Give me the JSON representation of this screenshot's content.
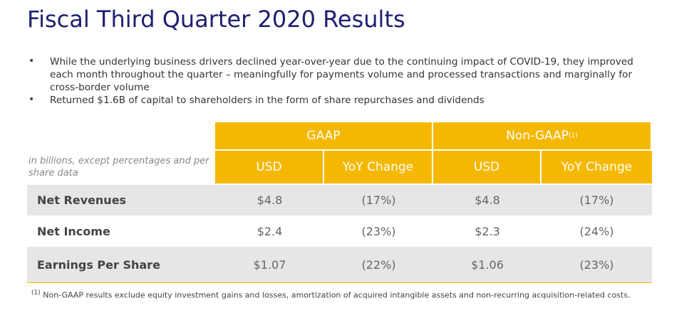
{
  "header": {
    "title": "Fiscal Third Quarter 2020 Results"
  },
  "bullets": [
    "While the underlying business drivers declined year-over-year due to the continuing impact of COVID-19, they improved each month throughout the quarter – meaningfully for payments volume and processed transactions and marginally for cross-border volume",
    "Returned $1.6B of capital to shareholders in the form of share repurchases and dividends"
  ],
  "table": {
    "label_note": "in billions, except percentages and per share data",
    "groups": [
      {
        "name": "GAAP"
      },
      {
        "name": "Non-GAAP",
        "marker": "(1)"
      }
    ],
    "columns": [
      "USD",
      "YoY Change",
      "USD",
      "YoY Change"
    ],
    "rows": [
      [
        "Net Revenues",
        "$4.8",
        "(17%)",
        "$4.8",
        "(17%)"
      ],
      [
        "Net Income",
        "$2.4",
        "(23%)",
        "$2.3",
        "(24%)"
      ],
      [
        "Earnings Per Share",
        "$1.07",
        "(22%)",
        "$1.06",
        "(23%)"
      ]
    ]
  },
  "footnote": {
    "marker": "(1)",
    "text": "Non-GAAP results exclude equity investment gains and losses, amortization of acquired intangible assets and non-recurring acquisition-related costs."
  }
}
